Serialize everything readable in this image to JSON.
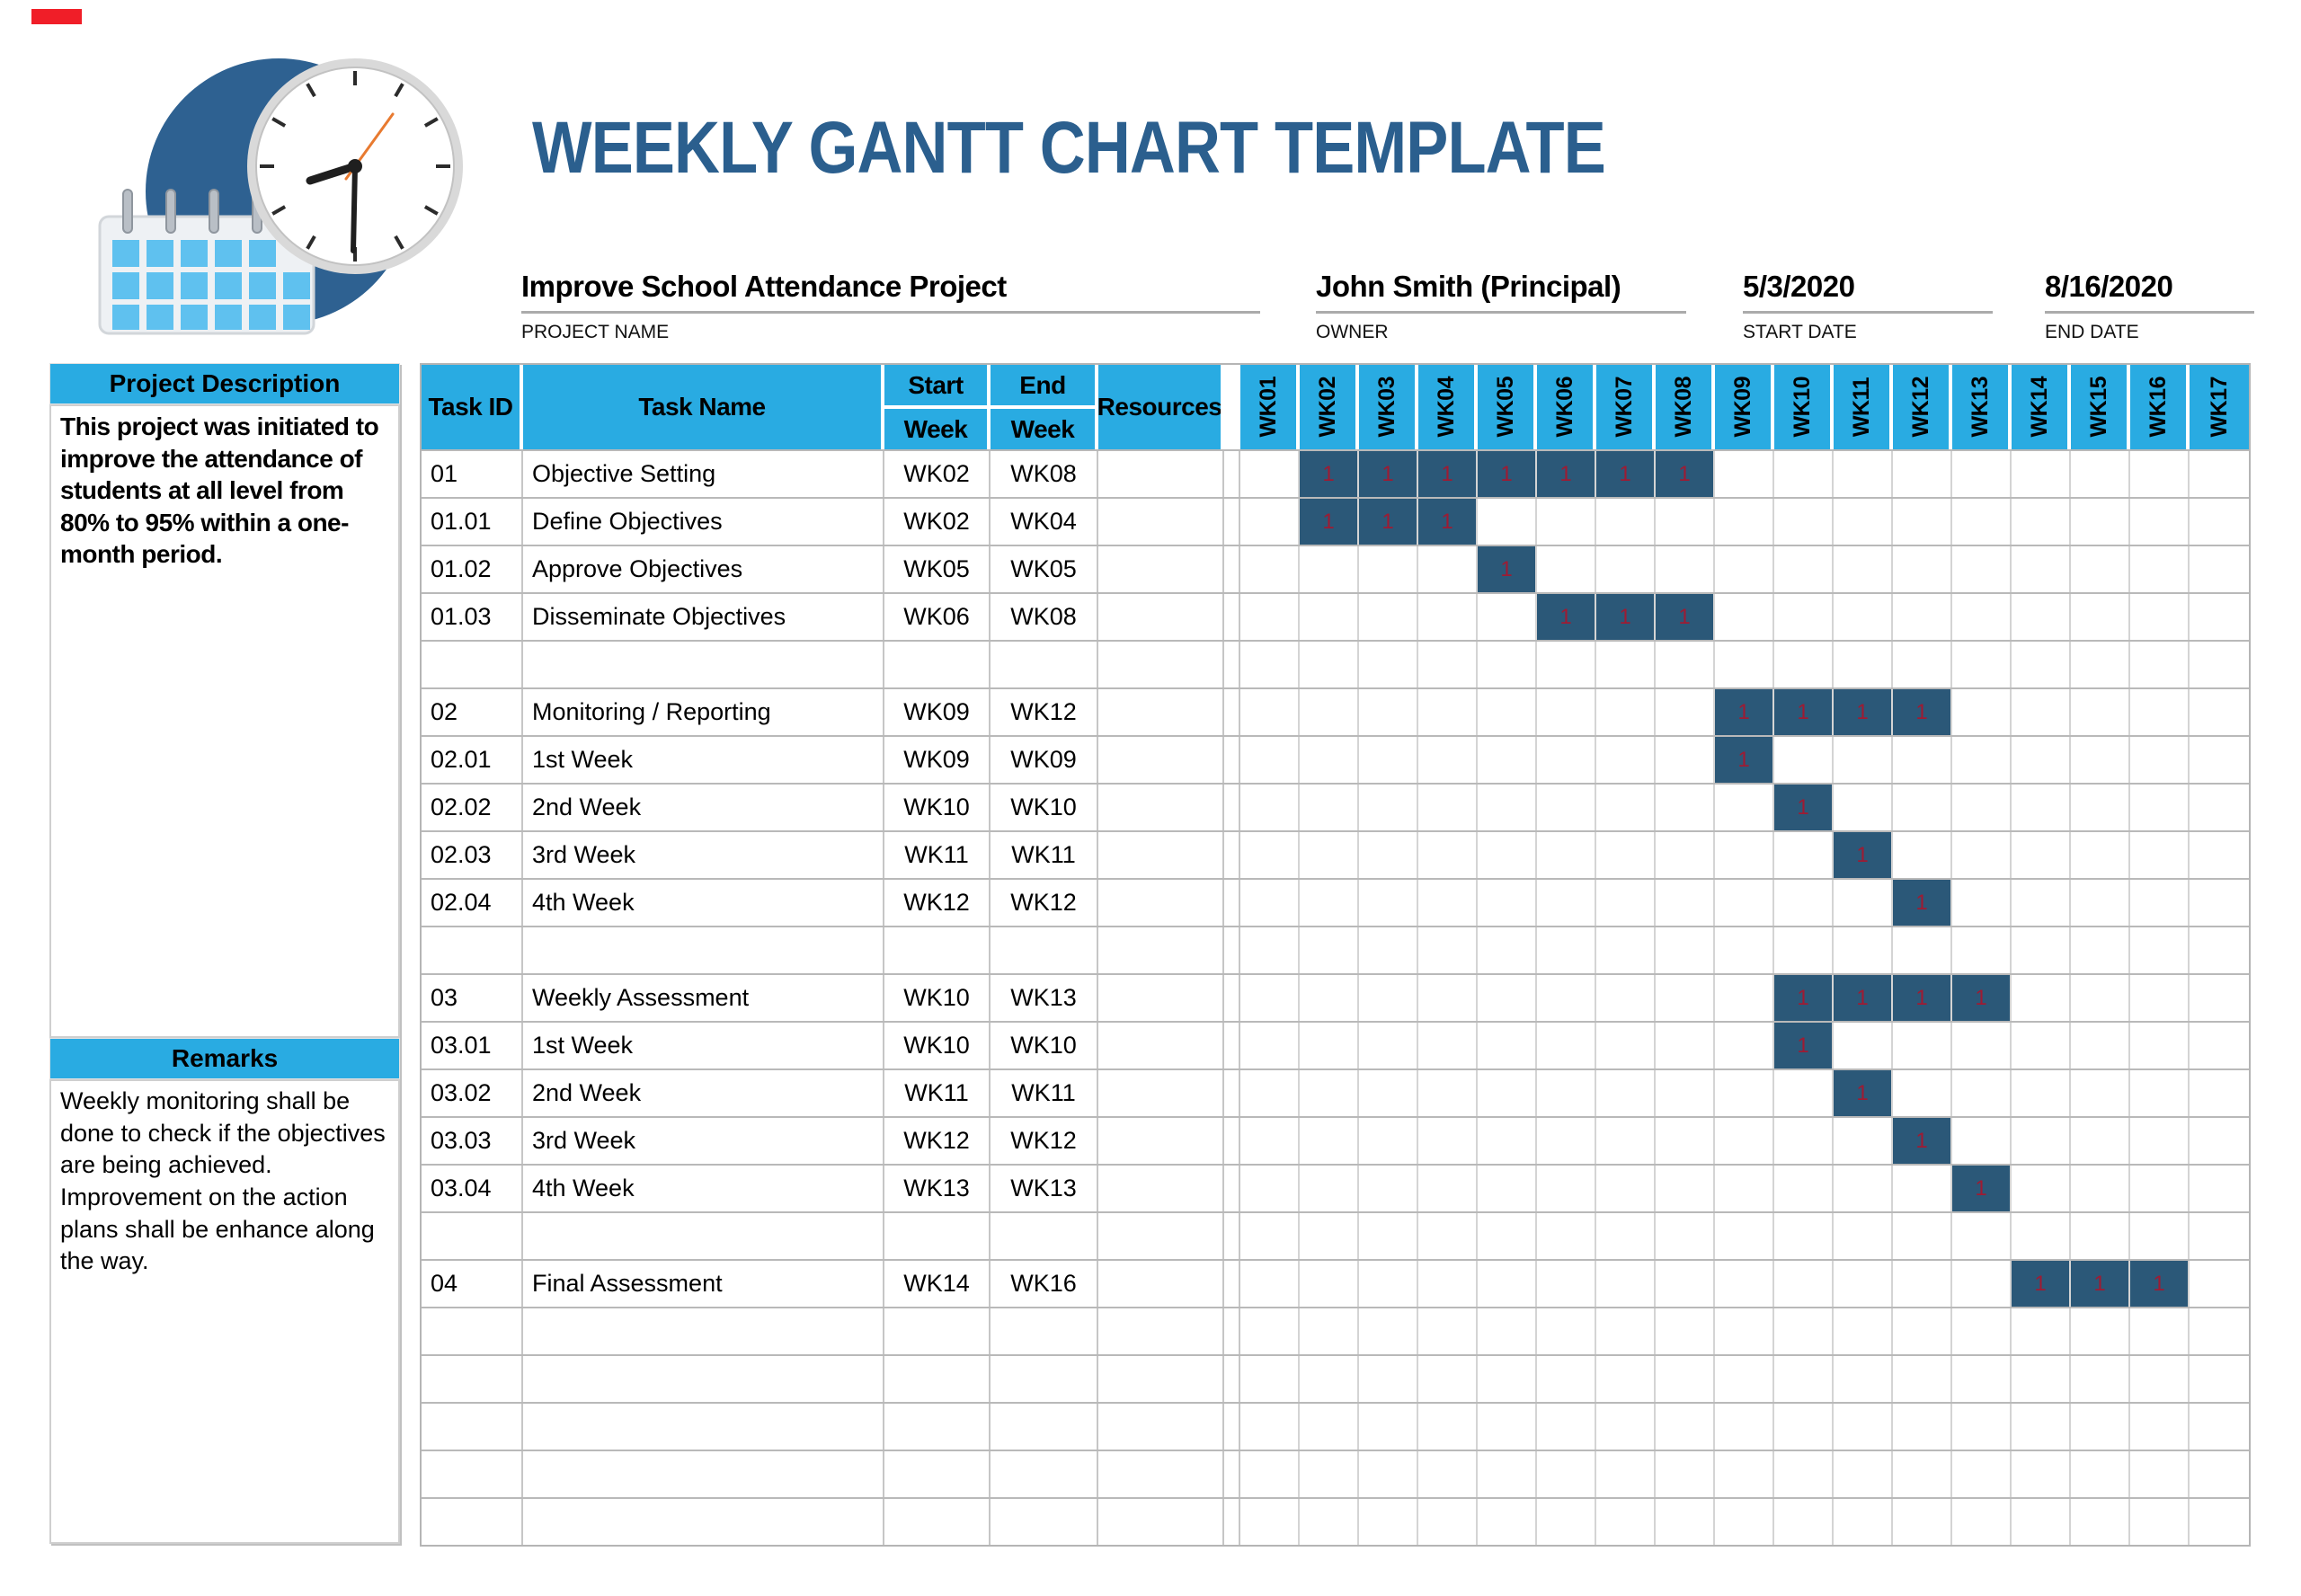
{
  "header": {
    "title": "WEEKLY GANTT CHART TEMPLATE"
  },
  "project_info": {
    "project_name": {
      "value": "Improve School Attendance Project",
      "label": "PROJECT NAME"
    },
    "owner": {
      "value": "John Smith (Principal)",
      "label": "OWNER"
    },
    "start_date": {
      "value": "5/3/2020",
      "label": "START DATE"
    },
    "end_date": {
      "value": "8/16/2020",
      "label": "END DATE"
    }
  },
  "sidebar": {
    "project_description": {
      "header": "Project Description",
      "body": "This project was initiated to improve the attendance of students at all level from 80% to 95% within a one-month period."
    },
    "remarks": {
      "header": "Remarks",
      "body": "Weekly monitoring shall be done to check if the objectives are being achieved.\nImprovement on the action plans shall be enhance along the way."
    }
  },
  "table": {
    "column_headers": {
      "task_id": "Task ID",
      "task_name": "Task Name",
      "start_week_line1": "Start",
      "start_week_line2": "Week",
      "end_week_line1": "End",
      "end_week_line2": "Week",
      "resources": "Resources"
    },
    "week_columns": [
      "WK01",
      "WK02",
      "WK03",
      "WK04",
      "WK05",
      "WK06",
      "WK07",
      "WK08",
      "WK09",
      "WK10",
      "WK11",
      "WK12",
      "WK13",
      "WK14",
      "WK15",
      "WK16",
      "WK17"
    ],
    "bar_cell_value": "1",
    "rows": [
      {
        "task_id": "01",
        "task_name": "Objective Setting",
        "start_week": "WK02",
        "end_week": "WK08",
        "resources": "",
        "bar_start": 2,
        "bar_end": 8
      },
      {
        "task_id": "01.01",
        "task_name": "Define Objectives",
        "start_week": "WK02",
        "end_week": "WK04",
        "resources": "",
        "bar_start": 2,
        "bar_end": 4
      },
      {
        "task_id": "01.02",
        "task_name": "Approve Objectives",
        "start_week": "WK05",
        "end_week": "WK05",
        "resources": "",
        "bar_start": 5,
        "bar_end": 5
      },
      {
        "task_id": "01.03",
        "task_name": "Disseminate Objectives",
        "start_week": "WK06",
        "end_week": "WK08",
        "resources": "",
        "bar_start": 6,
        "bar_end": 8
      },
      {
        "task_id": "",
        "task_name": "",
        "start_week": "",
        "end_week": "",
        "resources": "",
        "bar_start": null,
        "bar_end": null
      },
      {
        "task_id": "02",
        "task_name": "Monitoring / Reporting",
        "start_week": "WK09",
        "end_week": "WK12",
        "resources": "",
        "bar_start": 9,
        "bar_end": 12
      },
      {
        "task_id": "02.01",
        "task_name": "1st Week",
        "start_week": "WK09",
        "end_week": "WK09",
        "resources": "",
        "bar_start": 9,
        "bar_end": 9
      },
      {
        "task_id": "02.02",
        "task_name": "2nd Week",
        "start_week": "WK10",
        "end_week": "WK10",
        "resources": "",
        "bar_start": 10,
        "bar_end": 10
      },
      {
        "task_id": "02.03",
        "task_name": "3rd Week",
        "start_week": "WK11",
        "end_week": "WK11",
        "resources": "",
        "bar_start": 11,
        "bar_end": 11
      },
      {
        "task_id": "02.04",
        "task_name": "4th Week",
        "start_week": "WK12",
        "end_week": "WK12",
        "resources": "",
        "bar_start": 12,
        "bar_end": 12
      },
      {
        "task_id": "",
        "task_name": "",
        "start_week": "",
        "end_week": "",
        "resources": "",
        "bar_start": null,
        "bar_end": null
      },
      {
        "task_id": "03",
        "task_name": "Weekly Assessment",
        "start_week": "WK10",
        "end_week": "WK13",
        "resources": "",
        "bar_start": 10,
        "bar_end": 13
      },
      {
        "task_id": "03.01",
        "task_name": "1st Week",
        "start_week": "WK10",
        "end_week": "WK10",
        "resources": "",
        "bar_start": 10,
        "bar_end": 10
      },
      {
        "task_id": "03.02",
        "task_name": "2nd Week",
        "start_week": "WK11",
        "end_week": "WK11",
        "resources": "",
        "bar_start": 11,
        "bar_end": 11
      },
      {
        "task_id": "03.03",
        "task_name": "3rd Week",
        "start_week": "WK12",
        "end_week": "WK12",
        "resources": "",
        "bar_start": 12,
        "bar_end": 12
      },
      {
        "task_id": "03.04",
        "task_name": "4th Week",
        "start_week": "WK13",
        "end_week": "WK13",
        "resources": "",
        "bar_start": 13,
        "bar_end": 13
      },
      {
        "task_id": "",
        "task_name": "",
        "start_week": "",
        "end_week": "",
        "resources": "",
        "bar_start": null,
        "bar_end": null
      },
      {
        "task_id": "04",
        "task_name": "Final Assessment",
        "start_week": "WK14",
        "end_week": "WK16",
        "resources": "",
        "bar_start": 14,
        "bar_end": 16
      },
      {
        "task_id": "",
        "task_name": "",
        "start_week": "",
        "end_week": "",
        "resources": "",
        "bar_start": null,
        "bar_end": null
      },
      {
        "task_id": "",
        "task_name": "",
        "start_week": "",
        "end_week": "",
        "resources": "",
        "bar_start": null,
        "bar_end": null
      },
      {
        "task_id": "",
        "task_name": "",
        "start_week": "",
        "end_week": "",
        "resources": "",
        "bar_start": null,
        "bar_end": null
      },
      {
        "task_id": "",
        "task_name": "",
        "start_week": "",
        "end_week": "",
        "resources": "",
        "bar_start": null,
        "bar_end": null
      },
      {
        "task_id": "",
        "task_name": "",
        "start_week": "",
        "end_week": "",
        "resources": "",
        "bar_start": null,
        "bar_end": null
      }
    ]
  },
  "colors": {
    "header_bg": "#29abe2",
    "bar_fill": "#2b5878",
    "bar_text": "#9e1b33",
    "title_text": "#2b5f8e",
    "logo_circle": "#2e6191",
    "calendar_squares": "#5fc1ef",
    "marker_red": "#f01e28"
  },
  "chart_data": {
    "type": "table",
    "title": "WEEKLY GANTT CHART TEMPLATE",
    "project": "Improve School Attendance Project",
    "owner": "John Smith (Principal)",
    "start_date": "5/3/2020",
    "end_date": "8/16/2020",
    "week_axis": [
      "WK01",
      "WK02",
      "WK03",
      "WK04",
      "WK05",
      "WK06",
      "WK07",
      "WK08",
      "WK09",
      "WK10",
      "WK11",
      "WK12",
      "WK13",
      "WK14",
      "WK15",
      "WK16",
      "WK17"
    ],
    "cell_marker_value": 1,
    "tasks": [
      {
        "id": "01",
        "name": "Objective Setting",
        "start": "WK02",
        "end": "WK08"
      },
      {
        "id": "01.01",
        "name": "Define Objectives",
        "start": "WK02",
        "end": "WK04"
      },
      {
        "id": "01.02",
        "name": "Approve Objectives",
        "start": "WK05",
        "end": "WK05"
      },
      {
        "id": "01.03",
        "name": "Disseminate Objectives",
        "start": "WK06",
        "end": "WK08"
      },
      {
        "id": "02",
        "name": "Monitoring / Reporting",
        "start": "WK09",
        "end": "WK12"
      },
      {
        "id": "02.01",
        "name": "1st Week",
        "start": "WK09",
        "end": "WK09"
      },
      {
        "id": "02.02",
        "name": "2nd Week",
        "start": "WK10",
        "end": "WK10"
      },
      {
        "id": "02.03",
        "name": "3rd Week",
        "start": "WK11",
        "end": "WK11"
      },
      {
        "id": "02.04",
        "name": "4th Week",
        "start": "WK12",
        "end": "WK12"
      },
      {
        "id": "03",
        "name": "Weekly Assessment",
        "start": "WK10",
        "end": "WK13"
      },
      {
        "id": "03.01",
        "name": "1st Week",
        "start": "WK10",
        "end": "WK10"
      },
      {
        "id": "03.02",
        "name": "2nd Week",
        "start": "WK11",
        "end": "WK11"
      },
      {
        "id": "03.03",
        "name": "3rd Week",
        "start": "WK12",
        "end": "WK12"
      },
      {
        "id": "03.04",
        "name": "4th Week",
        "start": "WK13",
        "end": "WK13"
      },
      {
        "id": "04",
        "name": "Final Assessment",
        "start": "WK14",
        "end": "WK16"
      }
    ]
  }
}
